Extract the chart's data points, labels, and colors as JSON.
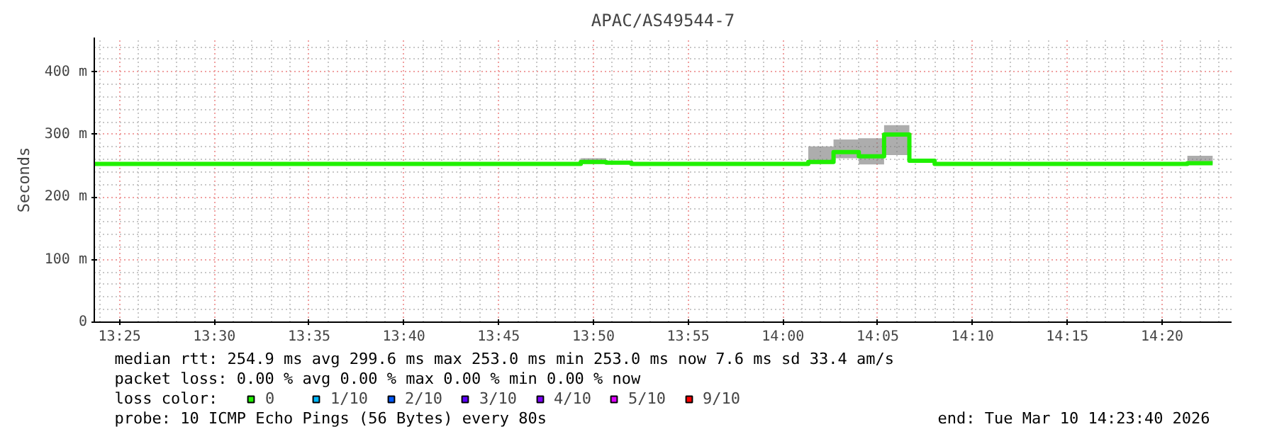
{
  "chart_data": {
    "type": "step",
    "title": "APAC/AS49544-7",
    "ylabel": "Seconds",
    "x": [
      13.39444,
      13.82222,
      13.84444,
      13.86667,
      14.02222,
      14.04444,
      14.06667,
      14.08889,
      14.11111,
      14.13333,
      14.35556,
      14.37778
    ],
    "series": [
      {
        "name": "0",
        "color": "#20f000",
        "values": [
          253,
          256,
          255,
          253,
          256,
          272,
          265,
          300,
          258,
          253,
          254,
          254
        ],
        "lower": [
          253,
          253,
          253,
          253,
          253,
          262,
          252,
          267,
          257,
          253,
          253,
          253
        ],
        "upper": [
          253,
          262,
          258,
          253,
          281,
          292,
          294,
          315,
          259,
          253,
          266,
          266
        ]
      },
      {
        "name": "1/10",
        "color": "#00b8ff",
        "values": [
          null,
          null,
          null,
          null,
          null,
          null,
          null,
          null,
          null,
          null,
          null,
          null
        ]
      },
      {
        "name": "2/10",
        "color": "#0059ff",
        "values": [
          null,
          null,
          null,
          null,
          null,
          null,
          null,
          null,
          null,
          null,
          null,
          null
        ]
      },
      {
        "name": "3/10",
        "color": "#5e00ff",
        "values": [
          null,
          null,
          null,
          null,
          null,
          null,
          null,
          null,
          null,
          null,
          null,
          null
        ]
      },
      {
        "name": "4/10",
        "color": "#7e00ff",
        "values": [
          null,
          null,
          null,
          null,
          null,
          null,
          null,
          null,
          null,
          null,
          null,
          null
        ]
      },
      {
        "name": "5/10",
        "color": "#dd00ff",
        "values": [
          null,
          null,
          null,
          null,
          null,
          null,
          null,
          null,
          null,
          null,
          null,
          null
        ]
      },
      {
        "name": "9/10",
        "color": "#ff0000",
        "values": [
          null,
          null,
          null,
          null,
          null,
          null,
          null,
          null,
          null,
          null,
          null,
          null
        ]
      }
    ],
    "legend_title": "loss color:",
    "legend": "bottom",
    "grid": true,
    "xlim": [
      13.39444,
      14.39444
    ],
    "xticks": [
      {
        "value": 13.41667,
        "label": "13:25"
      },
      {
        "value": 13.5,
        "label": "13:30"
      },
      {
        "value": 13.58333,
        "label": "13:35"
      },
      {
        "value": 13.66667,
        "label": "13:40"
      },
      {
        "value": 13.75,
        "label": "13:45"
      },
      {
        "value": 13.83333,
        "label": "13:50"
      },
      {
        "value": 13.91667,
        "label": "13:55"
      },
      {
        "value": 14.0,
        "label": "14:00"
      },
      {
        "value": 14.08333,
        "label": "14:05"
      },
      {
        "value": 14.16667,
        "label": "14:10"
      },
      {
        "value": 14.25,
        "label": "14:15"
      },
      {
        "value": 14.33333,
        "label": "14:20"
      }
    ],
    "ylim": [
      0,
      455
    ],
    "yticks": [
      0,
      {
        "value": 100,
        "label": "100 m"
      },
      {
        "value": 200,
        "label": "200 m"
      },
      {
        "value": 300,
        "label": "300 m"
      },
      {
        "value": 400,
        "label": "400 m"
      }
    ],
    "annotations": [
      "median rtt:  254.9 ms avg  299.6 ms max  253.0 ms min  253.0 ms now  7.6 ms sd  33.4   am/s",
      "packet loss: 0.00 % avg  0.00 % max  0.00 % min  0.00 % now",
      "probe:       10 ICMP Echo Pings (56 Bytes) every 80s",
      "end: Tue Mar 10 14:23:40 2026"
    ]
  }
}
